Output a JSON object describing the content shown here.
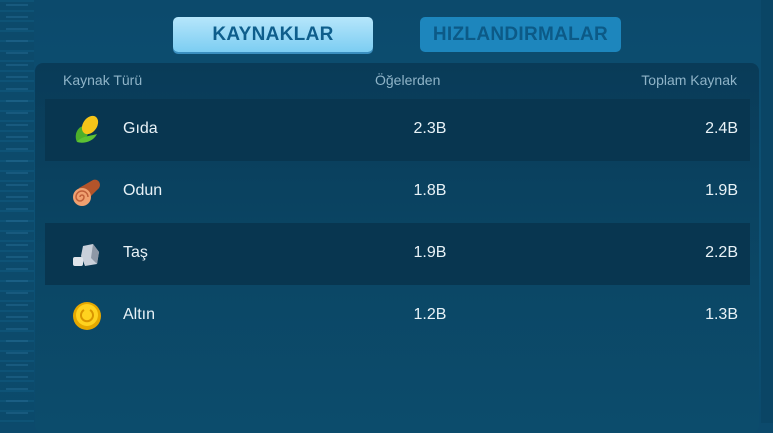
{
  "tabs": [
    {
      "label": "KAYNAKLAR",
      "active": true
    },
    {
      "label": "HIZLANDIRMALAR",
      "active": false
    }
  ],
  "table": {
    "headers": [
      "Kaynak Türü",
      "Öğelerden",
      "Toplam Kaynak"
    ],
    "rows": [
      {
        "icon": "corn-icon",
        "name": "Gıda",
        "from_items": "2.3B",
        "total": "2.4B"
      },
      {
        "icon": "wood-log-icon",
        "name": "Odun",
        "from_items": "1.8B",
        "total": "1.9B"
      },
      {
        "icon": "stone-icon",
        "name": "Taş",
        "from_items": "1.9B",
        "total": "2.2B"
      },
      {
        "icon": "gold-coin-icon",
        "name": "Altın",
        "from_items": "1.2B",
        "total": "1.3B"
      }
    ]
  }
}
